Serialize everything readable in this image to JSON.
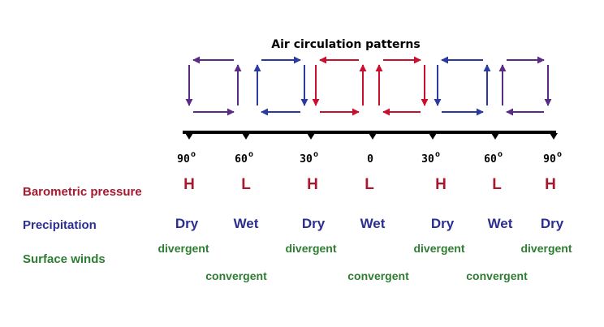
{
  "title": "Air circulation patterns",
  "colors": {
    "red": "#c8102e",
    "blue": "#2b3a9e",
    "purple": "#5b2a86",
    "pressure": "#a6192e",
    "precip": "#2b2f8f",
    "wind": "#2e7d32",
    "axis": "#000000"
  },
  "latitudes": [
    {
      "value": "90",
      "degree": "o"
    },
    {
      "value": "60",
      "degree": "o"
    },
    {
      "value": "30",
      "degree": "o"
    },
    {
      "value": "0",
      "degree": ""
    },
    {
      "value": "30",
      "degree": "o"
    },
    {
      "value": "60",
      "degree": "o"
    },
    {
      "value": "90",
      "degree": "o"
    }
  ],
  "rows": {
    "pressure": {
      "label": "Barometric pressure",
      "values": [
        "H",
        "L",
        "H",
        "L",
        "H",
        "L",
        "H"
      ]
    },
    "precipitation": {
      "label": "Precipitation",
      "values": [
        "Dry",
        "Wet",
        "Dry",
        "Wet",
        "Dry",
        "Wet",
        "Dry"
      ]
    },
    "surface_winds": {
      "label": "Surface winds",
      "divergent": [
        "divergent",
        "divergent",
        "divergent",
        "divergent"
      ],
      "convergent": [
        "convergent",
        "convergent",
        "convergent"
      ]
    }
  },
  "cells": [
    {
      "color": "purple"
    },
    {
      "color": "blue"
    },
    {
      "color": "red"
    },
    {
      "color": "red"
    },
    {
      "color": "blue"
    },
    {
      "color": "purple"
    }
  ]
}
